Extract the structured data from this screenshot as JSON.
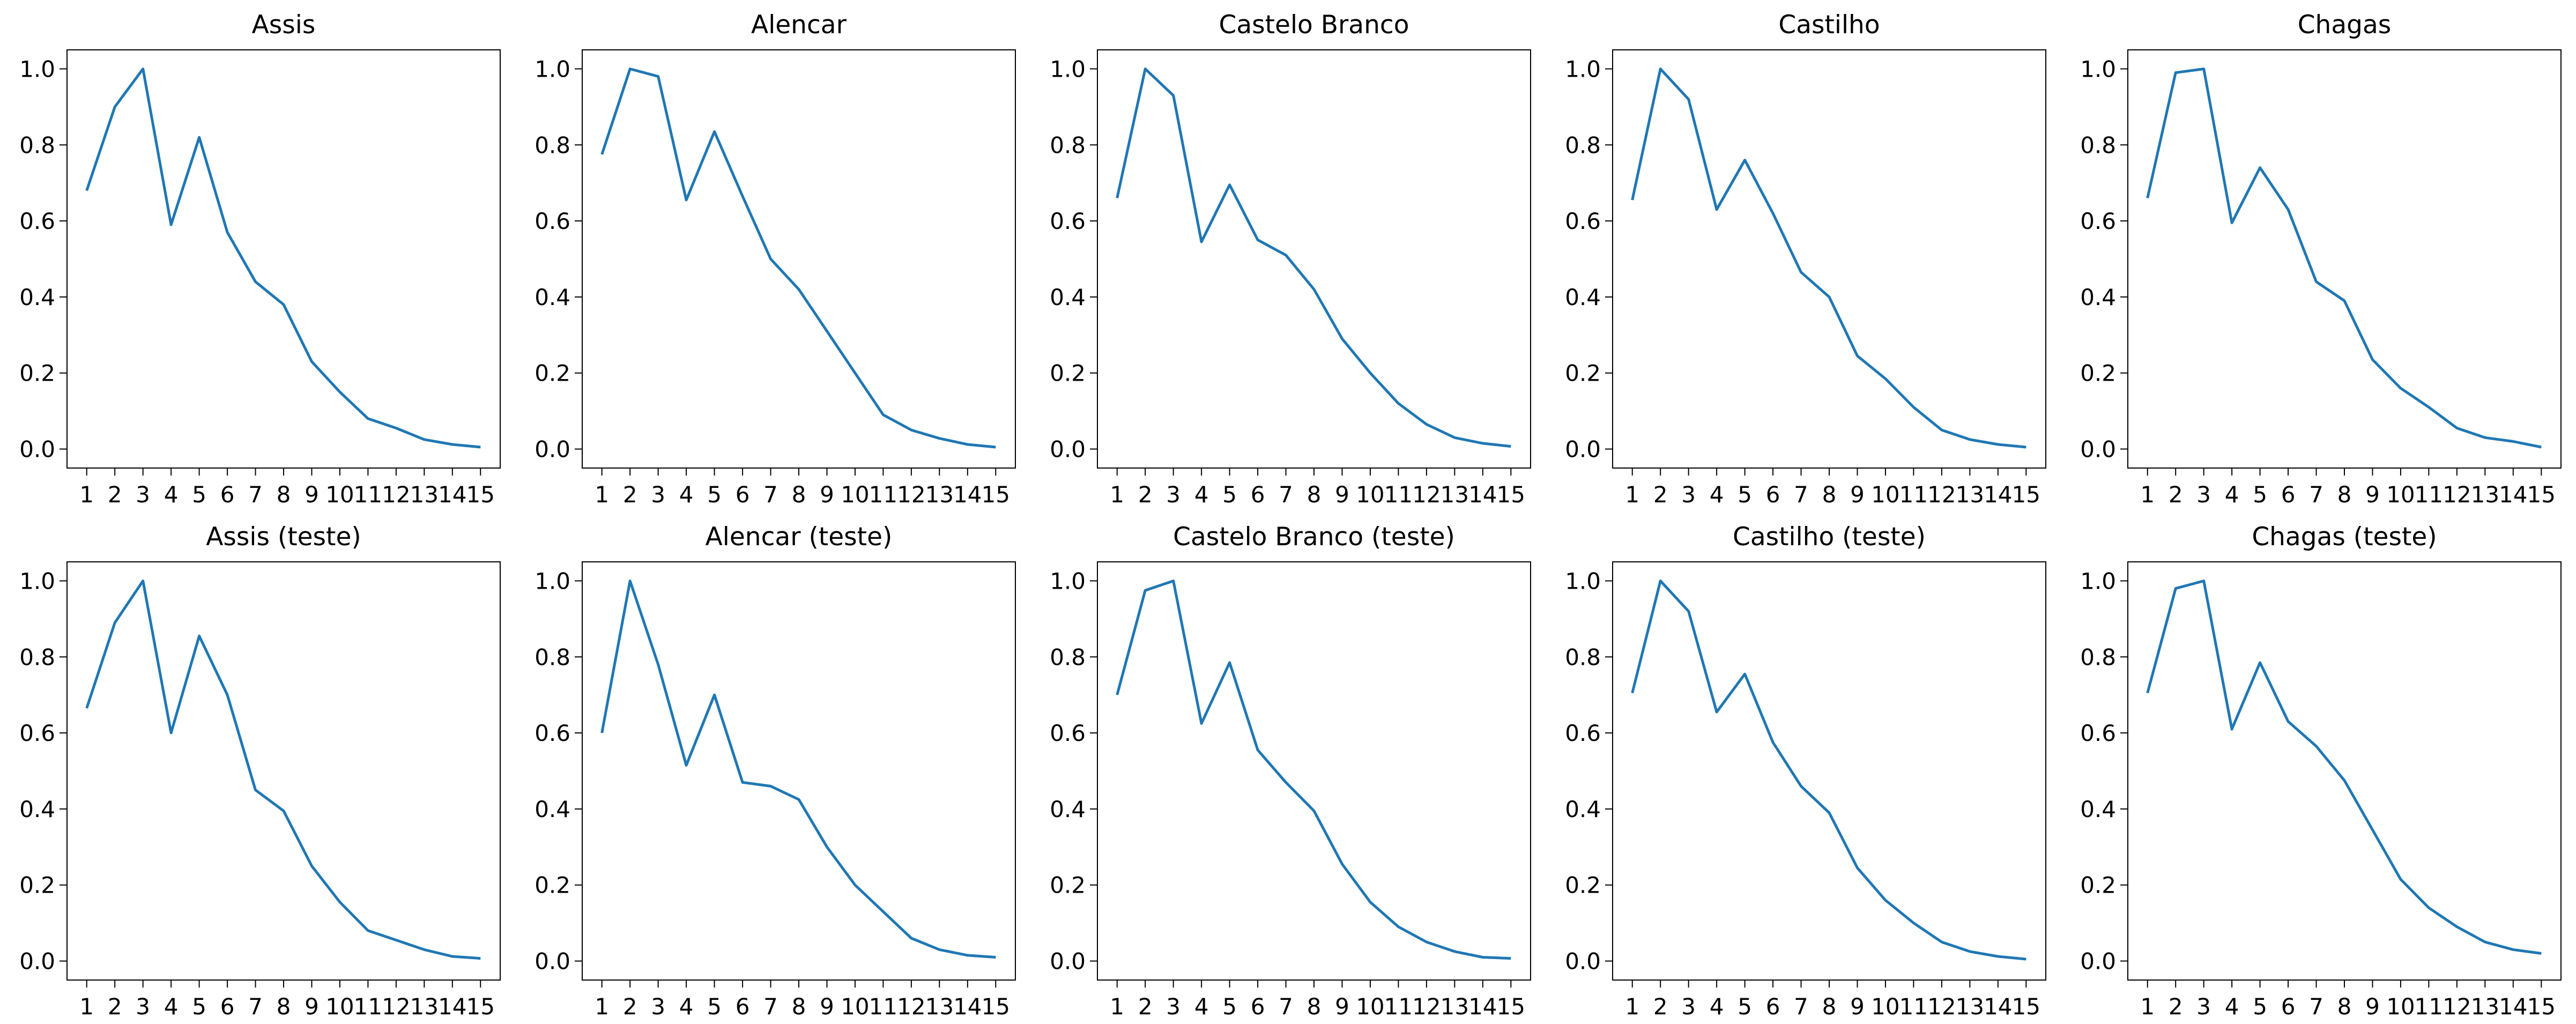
{
  "figure": {
    "background_color": "#ffffff",
    "line_color": "#1f77b4",
    "axis_color": "#000000",
    "text_color": "#000000",
    "rows": 2,
    "cols": 5,
    "grid_lines": false,
    "legend": null
  },
  "chart_data": [
    {
      "type": "line",
      "title": "Assis",
      "x": [
        1,
        2,
        3,
        4,
        5,
        6,
        7,
        8,
        9,
        10,
        11,
        12,
        13,
        14,
        15
      ],
      "y": [
        0.68,
        0.9,
        1.0,
        0.59,
        0.82,
        0.57,
        0.44,
        0.38,
        0.23,
        0.15,
        0.08,
        0.055,
        0.025,
        0.012,
        0.005
      ],
      "xlabel": "",
      "ylabel": "",
      "xtick_labels": [
        "1",
        "2",
        "3",
        "4",
        "5",
        "6",
        "7",
        "8",
        "9",
        "10",
        "11",
        "12",
        "13",
        "14",
        "15"
      ],
      "ytick_labels": [
        "0.0",
        "0.2",
        "0.4",
        "0.6",
        "0.8",
        "1.0"
      ],
      "yticks": [
        0.0,
        0.2,
        0.4,
        0.6,
        0.8,
        1.0
      ],
      "xlim": [
        0.3,
        15.7
      ],
      "ylim": [
        -0.05,
        1.05
      ]
    },
    {
      "type": "line",
      "title": "Alencar",
      "x": [
        1,
        2,
        3,
        4,
        5,
        6,
        7,
        8,
        9,
        10,
        11,
        12,
        13,
        14,
        15
      ],
      "y": [
        0.775,
        1.0,
        0.98,
        0.655,
        0.835,
        0.665,
        0.5,
        0.42,
        0.31,
        0.2,
        0.09,
        0.05,
        0.028,
        0.012,
        0.005
      ],
      "xlabel": "",
      "ylabel": "",
      "xtick_labels": [
        "1",
        "2",
        "3",
        "4",
        "5",
        "6",
        "7",
        "8",
        "9",
        "10",
        "11",
        "12",
        "13",
        "14",
        "15"
      ],
      "ytick_labels": [
        "0.0",
        "0.2",
        "0.4",
        "0.6",
        "0.8",
        "1.0"
      ],
      "yticks": [
        0.0,
        0.2,
        0.4,
        0.6,
        0.8,
        1.0
      ],
      "xlim": [
        0.3,
        15.7
      ],
      "ylim": [
        -0.05,
        1.05
      ]
    },
    {
      "type": "line",
      "title": "Castelo Branco",
      "x": [
        1,
        2,
        3,
        4,
        5,
        6,
        7,
        8,
        9,
        10,
        11,
        12,
        13,
        14,
        15
      ],
      "y": [
        0.66,
        1.0,
        0.93,
        0.545,
        0.695,
        0.55,
        0.51,
        0.42,
        0.29,
        0.2,
        0.12,
        0.065,
        0.03,
        0.015,
        0.007
      ],
      "xlabel": "",
      "ylabel": "",
      "xtick_labels": [
        "1",
        "2",
        "3",
        "4",
        "5",
        "6",
        "7",
        "8",
        "9",
        "10",
        "11",
        "12",
        "13",
        "14",
        "15"
      ],
      "ytick_labels": [
        "0.0",
        "0.2",
        "0.4",
        "0.6",
        "0.8",
        "1.0"
      ],
      "yticks": [
        0.0,
        0.2,
        0.4,
        0.6,
        0.8,
        1.0
      ],
      "xlim": [
        0.3,
        15.7
      ],
      "ylim": [
        -0.05,
        1.05
      ]
    },
    {
      "type": "line",
      "title": "Castilho",
      "x": [
        1,
        2,
        3,
        4,
        5,
        6,
        7,
        8,
        9,
        10,
        11,
        12,
        13,
        14,
        15
      ],
      "y": [
        0.655,
        1.0,
        0.92,
        0.63,
        0.76,
        0.62,
        0.465,
        0.4,
        0.245,
        0.185,
        0.11,
        0.05,
        0.025,
        0.012,
        0.005
      ],
      "xlabel": "",
      "ylabel": "",
      "xtick_labels": [
        "1",
        "2",
        "3",
        "4",
        "5",
        "6",
        "7",
        "8",
        "9",
        "10",
        "11",
        "12",
        "13",
        "14",
        "15"
      ],
      "ytick_labels": [
        "0.0",
        "0.2",
        "0.4",
        "0.6",
        "0.8",
        "1.0"
      ],
      "yticks": [
        0.0,
        0.2,
        0.4,
        0.6,
        0.8,
        1.0
      ],
      "xlim": [
        0.3,
        15.7
      ],
      "ylim": [
        -0.05,
        1.05
      ]
    },
    {
      "type": "line",
      "title": "Chagas",
      "x": [
        1,
        2,
        3,
        4,
        5,
        6,
        7,
        8,
        9,
        10,
        11,
        12,
        13,
        14,
        15
      ],
      "y": [
        0.66,
        0.99,
        1.0,
        0.595,
        0.74,
        0.63,
        0.44,
        0.39,
        0.235,
        0.16,
        0.11,
        0.055,
        0.03,
        0.02,
        0.005
      ],
      "xlabel": "",
      "ylabel": "",
      "xtick_labels": [
        "1",
        "2",
        "3",
        "4",
        "5",
        "6",
        "7",
        "8",
        "9",
        "10",
        "11",
        "12",
        "13",
        "14",
        "15"
      ],
      "ytick_labels": [
        "0.0",
        "0.2",
        "0.4",
        "0.6",
        "0.8",
        "1.0"
      ],
      "yticks": [
        0.0,
        0.2,
        0.4,
        0.6,
        0.8,
        1.0
      ],
      "xlim": [
        0.3,
        15.7
      ],
      "ylim": [
        -0.05,
        1.05
      ]
    },
    {
      "type": "line",
      "title": "Assis (teste)",
      "x": [
        1,
        2,
        3,
        4,
        5,
        6,
        7,
        8,
        9,
        10,
        11,
        12,
        13,
        14,
        15
      ],
      "y": [
        0.665,
        0.89,
        1.0,
        0.6,
        0.855,
        0.7,
        0.45,
        0.395,
        0.25,
        0.155,
        0.08,
        0.055,
        0.03,
        0.012,
        0.007
      ],
      "xlabel": "",
      "ylabel": "",
      "xtick_labels": [
        "1",
        "2",
        "3",
        "4",
        "5",
        "6",
        "7",
        "8",
        "9",
        "10",
        "11",
        "12",
        "13",
        "14",
        "15"
      ],
      "ytick_labels": [
        "0.0",
        "0.2",
        "0.4",
        "0.6",
        "0.8",
        "1.0"
      ],
      "yticks": [
        0.0,
        0.2,
        0.4,
        0.6,
        0.8,
        1.0
      ],
      "xlim": [
        0.3,
        15.7
      ],
      "ylim": [
        -0.05,
        1.05
      ]
    },
    {
      "type": "line",
      "title": "Alencar (teste)",
      "x": [
        1,
        2,
        3,
        4,
        5,
        6,
        7,
        8,
        9,
        10,
        11,
        12,
        13,
        14,
        15
      ],
      "y": [
        0.6,
        1.0,
        0.78,
        0.515,
        0.7,
        0.47,
        0.46,
        0.425,
        0.3,
        0.2,
        0.13,
        0.06,
        0.03,
        0.015,
        0.01
      ],
      "xlabel": "",
      "ylabel": "",
      "xtick_labels": [
        "1",
        "2",
        "3",
        "4",
        "5",
        "6",
        "7",
        "8",
        "9",
        "10",
        "11",
        "12",
        "13",
        "14",
        "15"
      ],
      "ytick_labels": [
        "0.0",
        "0.2",
        "0.4",
        "0.6",
        "0.8",
        "1.0"
      ],
      "yticks": [
        0.0,
        0.2,
        0.4,
        0.6,
        0.8,
        1.0
      ],
      "xlim": [
        0.3,
        15.7
      ],
      "ylim": [
        -0.05,
        1.05
      ]
    },
    {
      "type": "line",
      "title": "Castelo Branco (teste)",
      "x": [
        1,
        2,
        3,
        4,
        5,
        6,
        7,
        8,
        9,
        10,
        11,
        12,
        13,
        14,
        15
      ],
      "y": [
        0.7,
        0.975,
        1.0,
        0.625,
        0.785,
        0.555,
        0.47,
        0.395,
        0.255,
        0.155,
        0.09,
        0.05,
        0.025,
        0.01,
        0.007
      ],
      "xlabel": "",
      "ylabel": "",
      "xtick_labels": [
        "1",
        "2",
        "3",
        "4",
        "5",
        "6",
        "7",
        "8",
        "9",
        "10",
        "11",
        "12",
        "13",
        "14",
        "15"
      ],
      "ytick_labels": [
        "0.0",
        "0.2",
        "0.4",
        "0.6",
        "0.8",
        "1.0"
      ],
      "yticks": [
        0.0,
        0.2,
        0.4,
        0.6,
        0.8,
        1.0
      ],
      "xlim": [
        0.3,
        15.7
      ],
      "ylim": [
        -0.05,
        1.05
      ]
    },
    {
      "type": "line",
      "title": "Castilho (teste)",
      "x": [
        1,
        2,
        3,
        4,
        5,
        6,
        7,
        8,
        9,
        10,
        11,
        12,
        13,
        14,
        15
      ],
      "y": [
        0.705,
        1.0,
        0.92,
        0.655,
        0.755,
        0.575,
        0.46,
        0.39,
        0.245,
        0.16,
        0.1,
        0.05,
        0.025,
        0.012,
        0.005
      ],
      "xlabel": "",
      "ylabel": "",
      "xtick_labels": [
        "1",
        "2",
        "3",
        "4",
        "5",
        "6",
        "7",
        "8",
        "9",
        "10",
        "11",
        "12",
        "13",
        "14",
        "15"
      ],
      "ytick_labels": [
        "0.0",
        "0.2",
        "0.4",
        "0.6",
        "0.8",
        "1.0"
      ],
      "yticks": [
        0.0,
        0.2,
        0.4,
        0.6,
        0.8,
        1.0
      ],
      "xlim": [
        0.3,
        15.7
      ],
      "ylim": [
        -0.05,
        1.05
      ]
    },
    {
      "type": "line",
      "title": "Chagas (teste)",
      "x": [
        1,
        2,
        3,
        4,
        5,
        6,
        7,
        8,
        9,
        10,
        11,
        12,
        13,
        14,
        15
      ],
      "y": [
        0.705,
        0.98,
        1.0,
        0.61,
        0.785,
        0.63,
        0.565,
        0.475,
        0.345,
        0.215,
        0.14,
        0.09,
        0.05,
        0.03,
        0.02
      ],
      "xlabel": "",
      "ylabel": "",
      "xtick_labels": [
        "1",
        "2",
        "3",
        "4",
        "5",
        "6",
        "7",
        "8",
        "9",
        "10",
        "11",
        "12",
        "13",
        "14",
        "15"
      ],
      "ytick_labels": [
        "0.0",
        "0.2",
        "0.4",
        "0.6",
        "0.8",
        "1.0"
      ],
      "yticks": [
        0.0,
        0.2,
        0.4,
        0.6,
        0.8,
        1.0
      ],
      "xlim": [
        0.3,
        15.7
      ],
      "ylim": [
        -0.05,
        1.05
      ]
    }
  ]
}
